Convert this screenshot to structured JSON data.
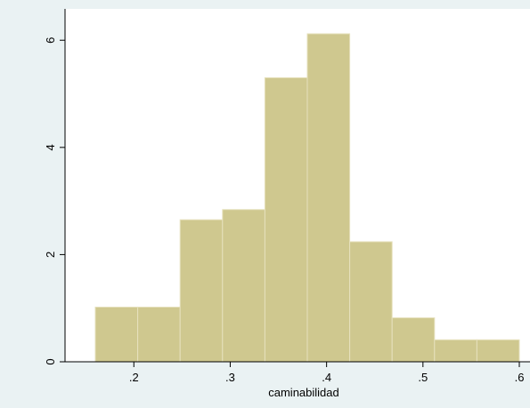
{
  "chart_data": {
    "type": "histogram",
    "title": "",
    "xlabel": "caminabilidad",
    "ylabel": "",
    "xlim": [
      0.16,
      0.6
    ],
    "ylim": [
      0,
      6.1
    ],
    "x_ticks": [
      0.2,
      0.3,
      0.4,
      0.5,
      0.6
    ],
    "x_tick_labels": [
      ".2",
      ".3",
      ".4",
      ".5",
      ".6"
    ],
    "y_ticks": [
      0,
      2,
      4,
      6
    ],
    "y_tick_labels": [
      "0",
      "2",
      "4",
      "6"
    ],
    "bins": [
      {
        "x0": 0.16,
        "x1": 0.204,
        "value": 1.02
      },
      {
        "x0": 0.204,
        "x1": 0.248,
        "value": 1.02
      },
      {
        "x0": 0.248,
        "x1": 0.292,
        "value": 2.65
      },
      {
        "x0": 0.292,
        "x1": 0.336,
        "value": 2.84
      },
      {
        "x0": 0.336,
        "x1": 0.38,
        "value": 5.3
      },
      {
        "x0": 0.38,
        "x1": 0.424,
        "value": 6.12
      },
      {
        "x0": 0.424,
        "x1": 0.468,
        "value": 2.24
      },
      {
        "x0": 0.468,
        "x1": 0.512,
        "value": 0.82
      },
      {
        "x0": 0.512,
        "x1": 0.556,
        "value": 0.41
      },
      {
        "x0": 0.556,
        "x1": 0.6,
        "value": 0.41
      }
    ],
    "grid": false,
    "legend": "none",
    "colors": {
      "outer_background": "#eaf2f3",
      "plot_background": "#ffffff",
      "bar_fill": "#cfc88f",
      "bar_stroke": "#e6e1bd",
      "axis": "#000000"
    }
  }
}
